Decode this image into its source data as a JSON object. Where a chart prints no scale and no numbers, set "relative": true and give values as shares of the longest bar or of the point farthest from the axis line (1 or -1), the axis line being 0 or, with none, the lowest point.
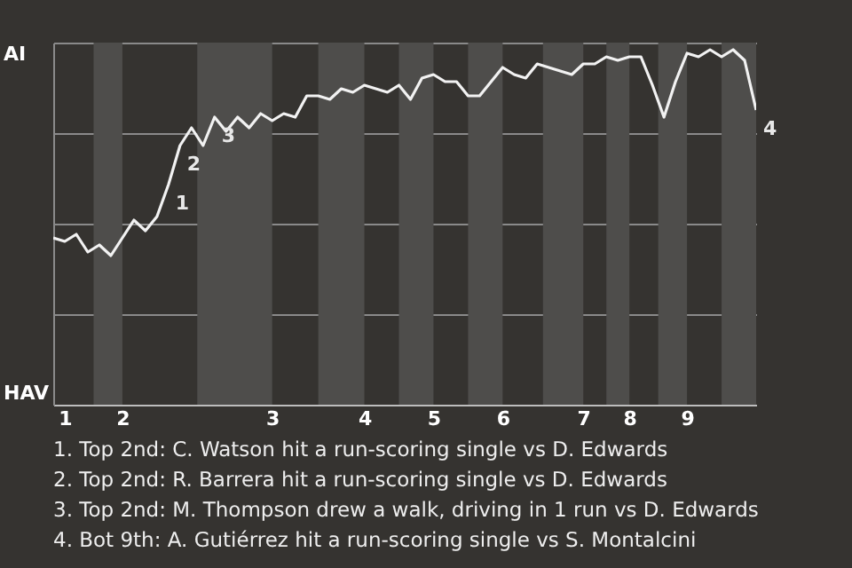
{
  "chart_data": {
    "type": "line",
    "relative": true,
    "categories": [
      null,
      "1",
      null,
      null,
      null,
      null,
      "2",
      null,
      null,
      null,
      null,
      null,
      null,
      null,
      null,
      null,
      null,
      null,
      null,
      "3",
      null,
      null,
      null,
      null,
      null,
      null,
      null,
      "4",
      null,
      null,
      null,
      null,
      null,
      "5",
      null,
      null,
      null,
      null,
      null,
      "6",
      null,
      null,
      null,
      null,
      null,
      null,
      "7",
      null,
      null,
      null,
      "8",
      null,
      null,
      null,
      null,
      "9",
      null,
      null,
      null,
      null,
      null,
      null
    ],
    "series": [
      {
        "color": "#f2f2f2",
        "values": [
          0.47,
          0.46,
          0.48,
          0.43,
          0.45,
          0.42,
          0.47,
          0.52,
          0.49,
          0.53,
          0.62,
          0.73,
          0.78,
          0.73,
          0.81,
          0.77,
          0.81,
          0.78,
          0.82,
          0.8,
          0.82,
          0.81,
          0.87,
          0.87,
          0.86,
          0.89,
          0.88,
          0.9,
          0.89,
          0.88,
          0.9,
          0.86,
          0.92,
          0.93,
          0.91,
          0.91,
          0.87,
          0.87,
          0.91,
          0.95,
          0.93,
          0.92,
          0.96,
          0.95,
          0.94,
          0.93,
          0.96,
          0.96,
          0.98,
          0.97,
          0.98,
          0.98,
          0.9,
          0.81,
          0.91,
          0.99,
          0.98,
          1,
          0.98,
          1,
          0.97,
          0.83
        ]
      }
    ],
    "grid": "y",
    "marker": "none",
    "line_style": "solid",
    "annotations": [
      "AI",
      "HAV",
      "1",
      "2",
      "3",
      "4",
      "1. Top 2nd: C. Watson hit a run-scoring single vs D. Edwards",
      "2. Top 2nd: R. Barrera hit a run-scoring single vs D. Edwards",
      "3. Top 2nd: M. Thompson drew a walk, driving in 1 run vs D. Edwards",
      "4. Bot 9th: A. Gutiérrez hit a run-scoring single vs S. Montalcini"
    ]
  }
}
